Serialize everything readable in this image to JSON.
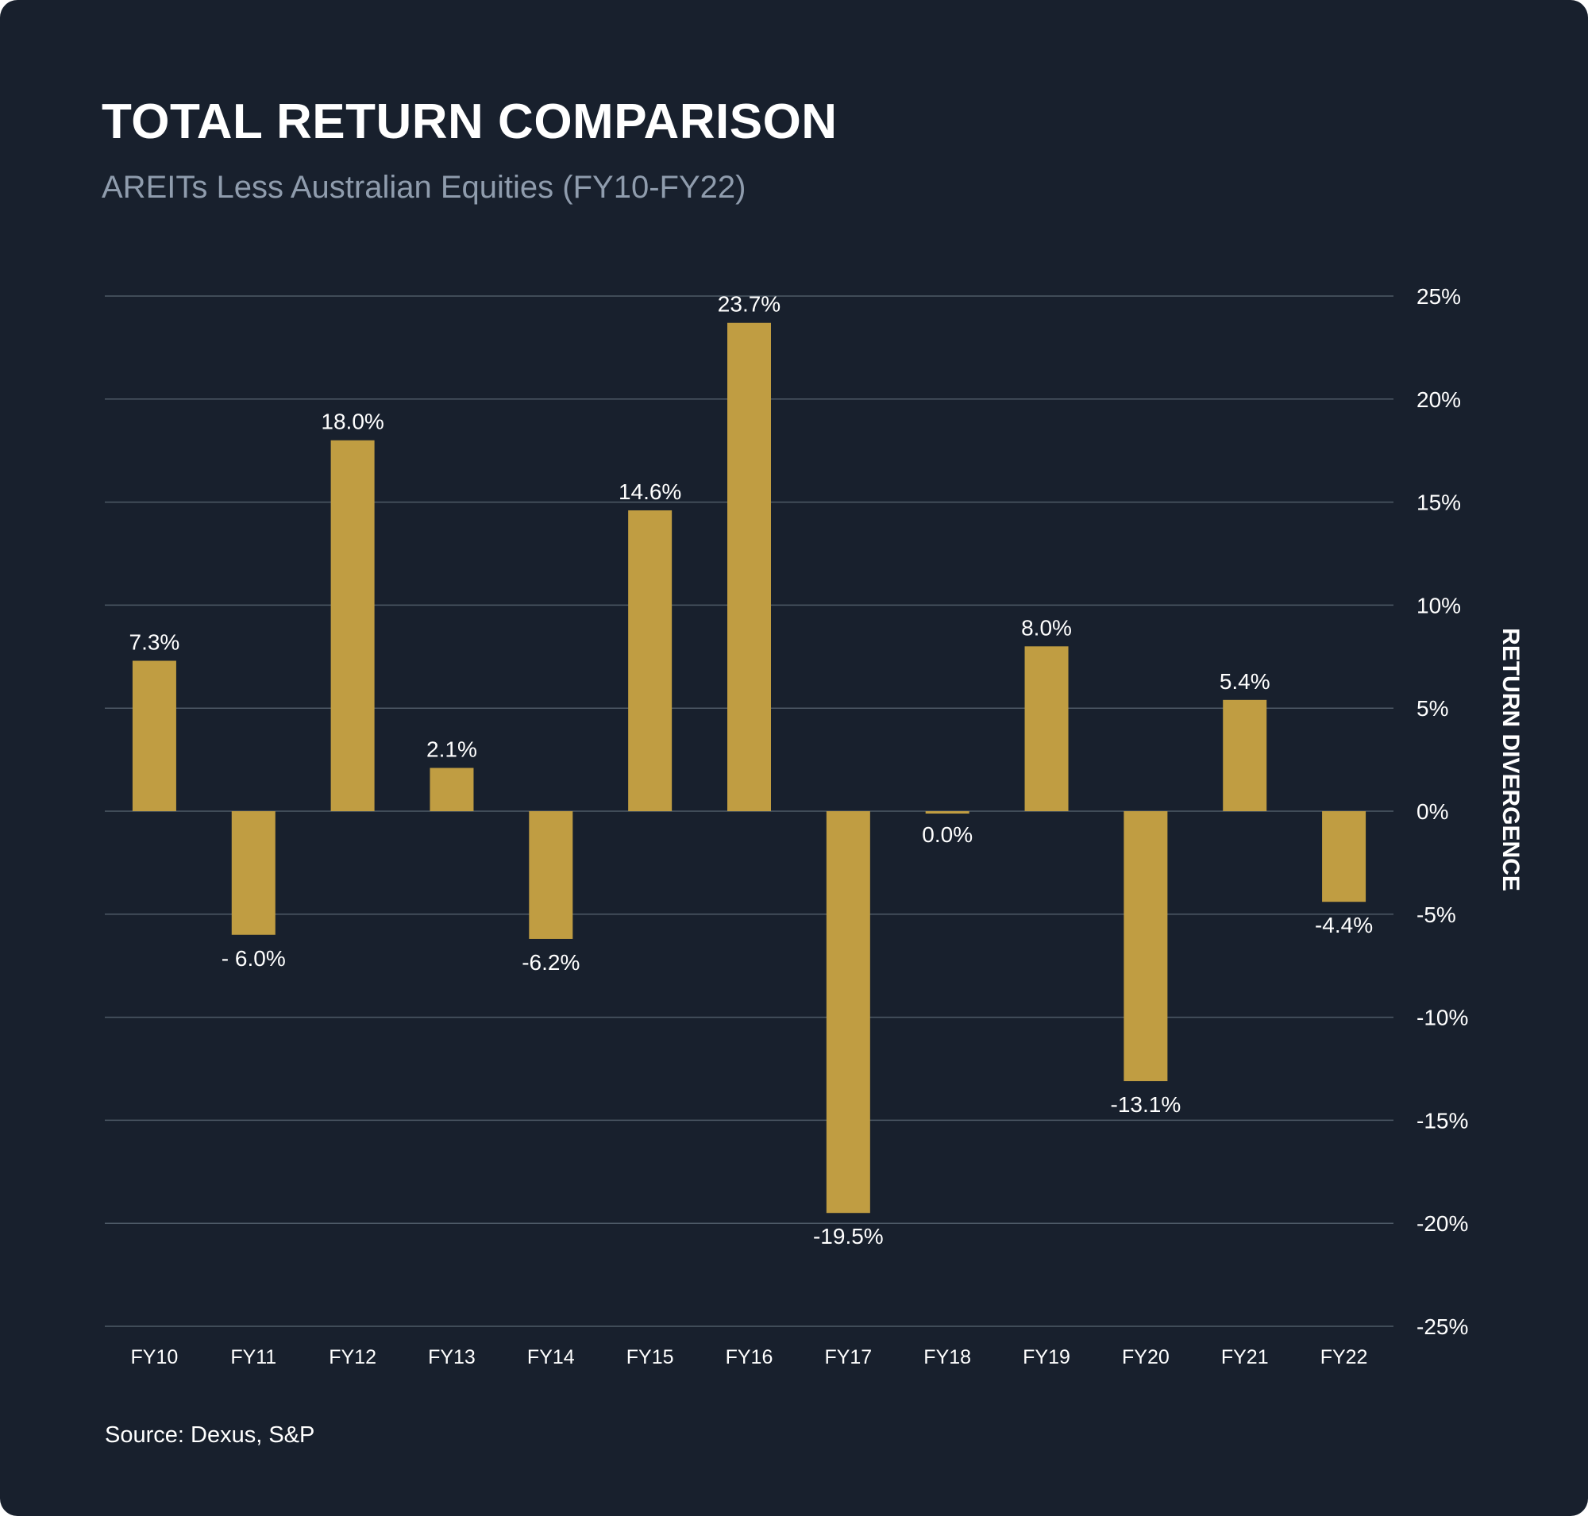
{
  "chart_data": {
    "type": "bar",
    "title": "TOTAL RETURN COMPARISON",
    "subtitle": "AREITs Less Australian Equities (FY10-FY22)",
    "categories": [
      "FY10",
      "FY11",
      "FY12",
      "FY13",
      "FY14",
      "FY15",
      "FY16",
      "FY17",
      "FY18",
      "FY19",
      "FY20",
      "FY21",
      "FY22"
    ],
    "values": [
      7.3,
      -6.0,
      18.0,
      2.1,
      -6.2,
      14.6,
      23.7,
      -19.5,
      0.0,
      8.0,
      -13.1,
      5.4,
      -4.4
    ],
    "data_labels": [
      "7.3%",
      "- 6.0%",
      "18.0%",
      "2.1%",
      "-6.2%",
      "14.6%",
      "23.7%",
      "-19.5%",
      "0.0%",
      "8.0%",
      "-13.1%",
      "5.4%",
      "-4.4%"
    ],
    "xlabel": "",
    "ylabel": "RETURN DIVERGENCE",
    "ylim": [
      -25,
      25
    ],
    "y_ticks": [
      25,
      20,
      15,
      10,
      5,
      0,
      -5,
      -10,
      -15,
      -20,
      -25
    ],
    "y_tick_labels": [
      "25%",
      "20%",
      "15%",
      "10%",
      "5%",
      "0%",
      "-5%",
      "-10%",
      "-15%",
      "-20%",
      "-25%"
    ],
    "y_axis_position": "right",
    "grid": true,
    "bar_color": "#c09d42",
    "source": "Source: Dexus, S&P"
  }
}
